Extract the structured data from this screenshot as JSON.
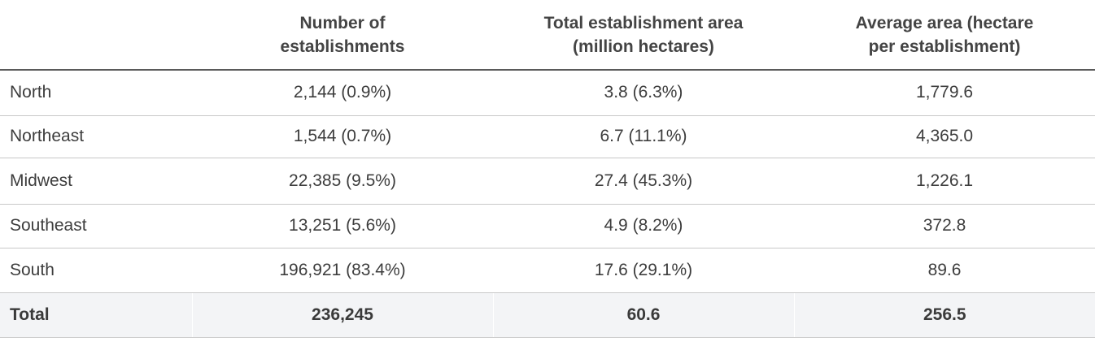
{
  "table": {
    "headers": {
      "region": "",
      "num_establishments": [
        "Number of",
        "establishments"
      ],
      "total_area": [
        "Total establishment area",
        "(million hectares)"
      ],
      "avg_area": [
        "Average area (hectare",
        "per establishment)"
      ]
    },
    "rows": [
      {
        "region": "North",
        "num": "2,144 (0.9%)",
        "area": "3.8 (6.3%)",
        "avg": "1,779.6"
      },
      {
        "region": "Northeast",
        "num": "1,544 (0.7%)",
        "area": "6.7 (11.1%)",
        "avg": "4,365.0"
      },
      {
        "region": "Midwest",
        "num": "22,385 (9.5%)",
        "area": "27.4 (45.3%)",
        "avg": "1,226.1"
      },
      {
        "region": "Southeast",
        "num": "13,251 (5.6%)",
        "area": "4.9 (8.2%)",
        "avg": "372.8"
      },
      {
        "region": "South",
        "num": "196,921 (83.4%)",
        "area": "17.6 (29.1%)",
        "avg": "89.6"
      }
    ],
    "total": {
      "region": "Total",
      "num": "236,245",
      "area": "60.6",
      "avg": "256.5"
    }
  }
}
